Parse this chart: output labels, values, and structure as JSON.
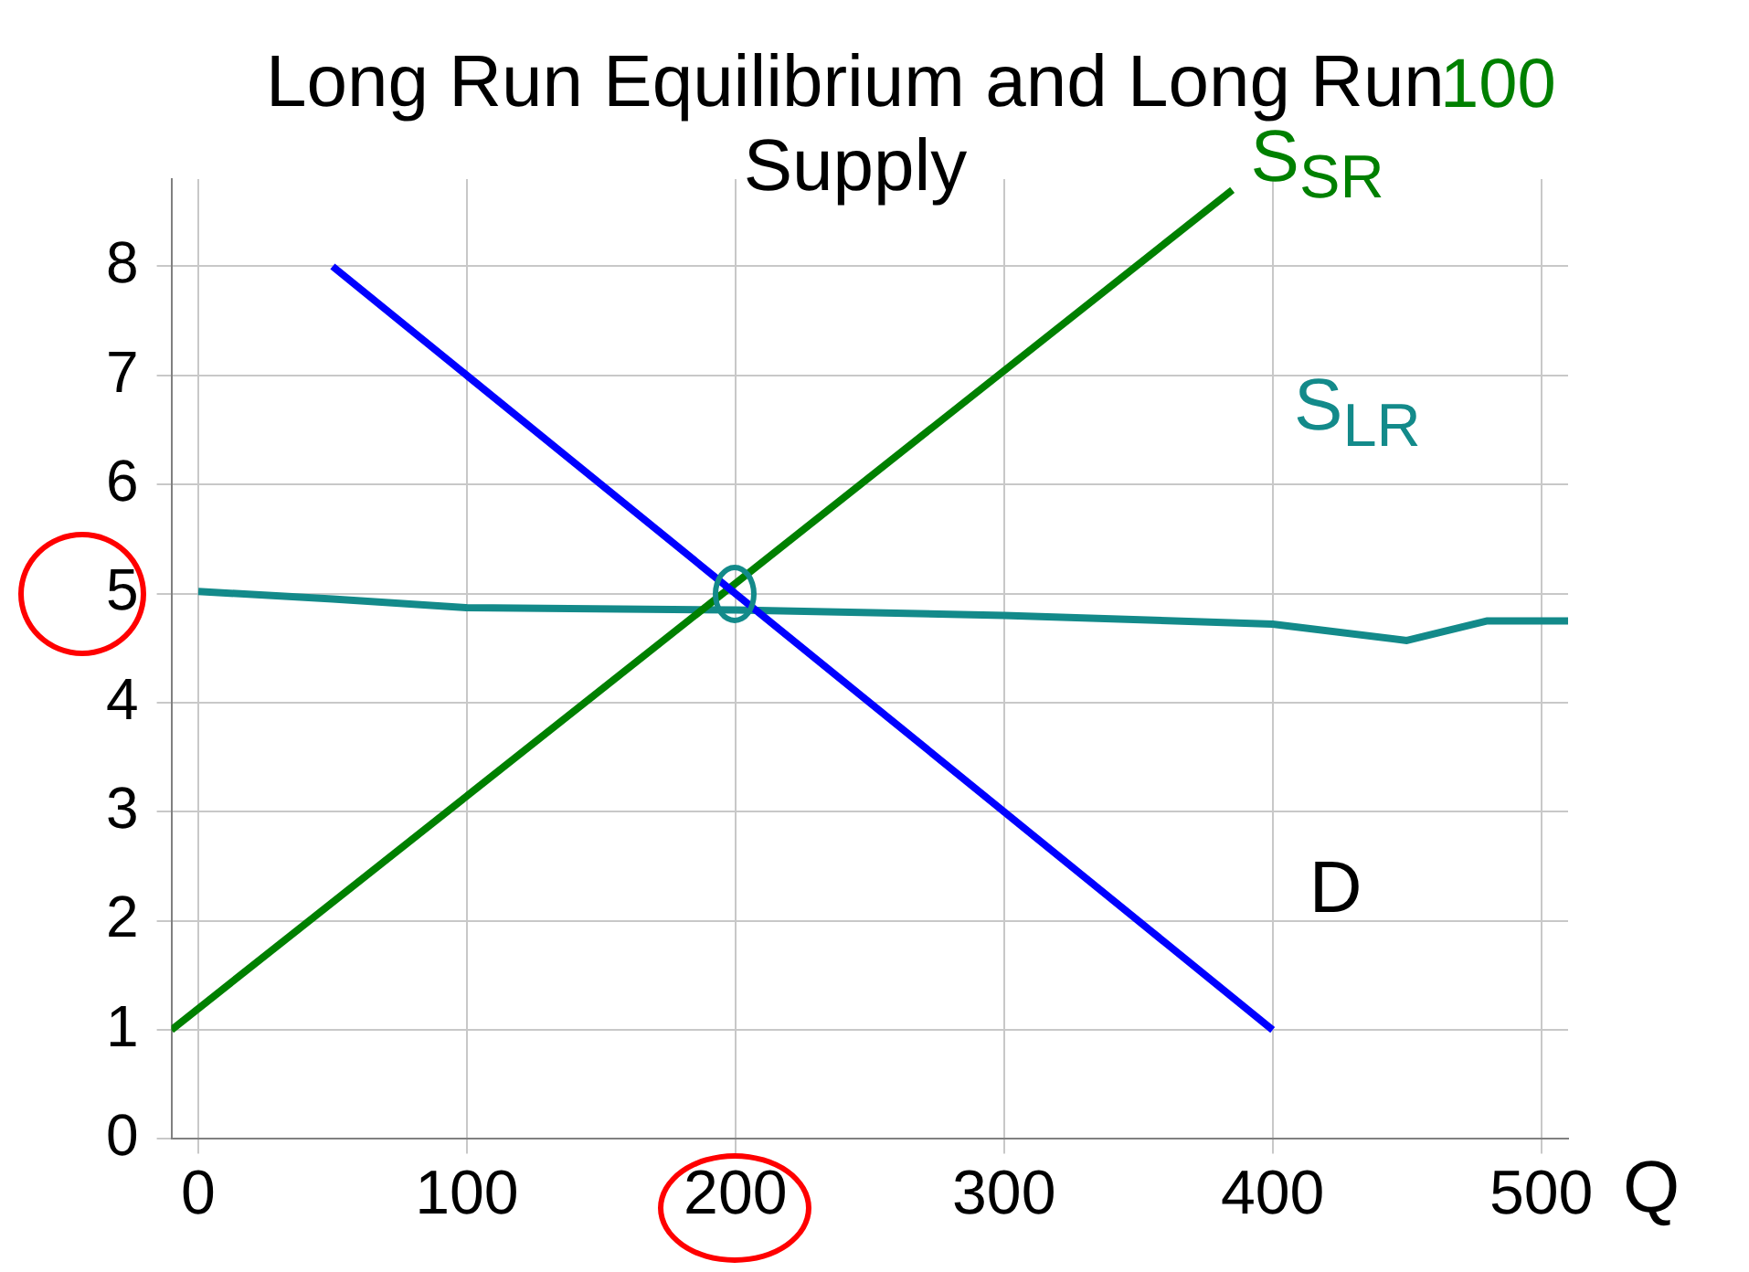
{
  "chart_data": {
    "type": "line",
    "title": "Long Run Equilibrium and Long Run Supply",
    "xlabel": "Q",
    "xlim": [
      -10,
      510
    ],
    "xticks": [
      0,
      100,
      200,
      300,
      400,
      500
    ],
    "ylim": [
      0,
      8.8
    ],
    "yticks": [
      0,
      1,
      2,
      3,
      4,
      5,
      6,
      7,
      8
    ],
    "grid": true,
    "legend": false,
    "marker": "none",
    "annotations": [
      "100"
    ],
    "series": [
      {
        "name": "D",
        "color": "#0000ff",
        "x": [
          50,
          400
        ],
        "values": [
          8,
          1
        ]
      },
      {
        "name": "S$_{SR}$",
        "color": "#008000",
        "x": [
          -10,
          385
        ],
        "values": [
          1,
          8.7
        ]
      },
      {
        "name": "S$_{LR}$",
        "color": "#138a8a",
        "x": [
          0,
          50,
          100,
          200,
          300,
          400,
          450,
          480,
          510
        ],
        "values": [
          5.02,
          4.95,
          4.87,
          4.85,
          4.8,
          4.72,
          4.57,
          4.75,
          4.75
        ]
      }
    ]
  }
}
